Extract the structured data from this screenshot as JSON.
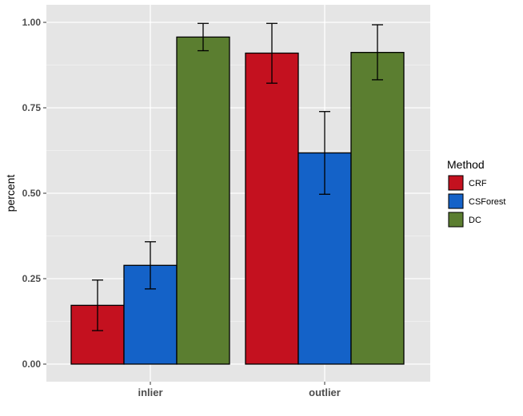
{
  "chart_data": {
    "type": "bar",
    "title": "",
    "xlabel": "",
    "ylabel": "percent",
    "categories": [
      "inlier",
      "outlier"
    ],
    "ylim": [
      0,
      1.05
    ],
    "yticks": [
      0.0,
      0.25,
      0.5,
      0.75,
      1.0
    ],
    "ytick_labels": [
      "0.00",
      "0.25",
      "0.50",
      "0.75",
      "1.00"
    ],
    "grid": true,
    "legend": {
      "title": "Method",
      "placement": "right"
    },
    "error_bars": true,
    "series": [
      {
        "name": "CRF",
        "color": "#C4111F",
        "values": [
          0.172,
          0.91
        ],
        "err_low": [
          0.098,
          0.822
        ],
        "err_high": [
          0.246,
          0.997
        ]
      },
      {
        "name": "CSForest",
        "color": "#1462C8",
        "values": [
          0.289,
          0.618
        ],
        "err_low": [
          0.22,
          0.497
        ],
        "err_high": [
          0.358,
          0.739
        ]
      },
      {
        "name": "DC",
        "color": "#5B7E30",
        "values": [
          0.957,
          0.912
        ],
        "err_low": [
          0.917,
          0.832
        ],
        "err_high": [
          0.997,
          0.993
        ]
      }
    ]
  }
}
